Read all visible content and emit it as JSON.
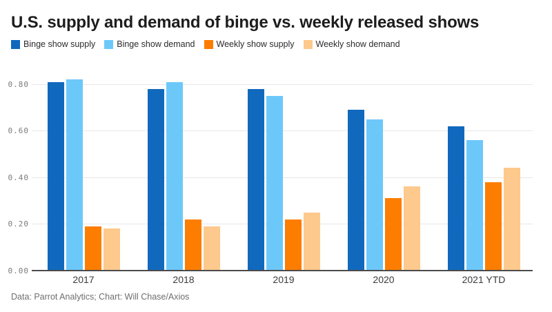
{
  "title": "U.S. supply and demand of binge vs. weekly released shows",
  "footer": "Data: Parrot Analytics; Chart: Will Chase/Axios",
  "colors": {
    "binge_supply": "#1169bd",
    "binge_demand": "#6dc8fa",
    "weekly_supply": "#fd7d00",
    "weekly_demand": "#fdc98d",
    "gridline": "#e7e7e7",
    "axis_line": "#4b4b4b",
    "title_text": "#1d1d1d",
    "tick_text": "#7b7b7b"
  },
  "legend": [
    {
      "label": "Binge show supply",
      "color": "#1169bd"
    },
    {
      "label": "Binge show demand",
      "color": "#6dc8fa"
    },
    {
      "label": "Weekly show supply",
      "color": "#fd7d00"
    },
    {
      "label": "Weekly show demand",
      "color": "#fdc98d"
    }
  ],
  "chart_data": {
    "type": "bar",
    "title": "U.S. supply and demand of binge vs. weekly released shows",
    "categories": [
      "2017",
      "2018",
      "2019",
      "2020",
      "2021 YTD"
    ],
    "series": [
      {
        "name": "Binge show supply",
        "color": "#1169bd",
        "values": [
          0.81,
          0.78,
          0.78,
          0.69,
          0.62
        ]
      },
      {
        "name": "Binge show demand",
        "color": "#6dc8fa",
        "values": [
          0.82,
          0.81,
          0.75,
          0.65,
          0.56
        ]
      },
      {
        "name": "Weekly show supply",
        "color": "#fd7d00",
        "values": [
          0.19,
          0.22,
          0.22,
          0.31,
          0.38
        ]
      },
      {
        "name": "Weekly show demand",
        "color": "#fdc98d",
        "values": [
          0.18,
          0.19,
          0.25,
          0.36,
          0.44
        ]
      }
    ],
    "xlabel": "",
    "ylabel": "",
    "ylim": [
      0,
      0.88
    ],
    "yticks": [
      0.0,
      0.2,
      0.4,
      0.6,
      0.8
    ],
    "ytick_labels": [
      "0.00",
      "0.20",
      "0.40",
      "0.60",
      "0.80"
    ],
    "grid": true,
    "legend_position": "top-left",
    "source_note": "Data: Parrot Analytics; Chart: Will Chase/Axios"
  }
}
